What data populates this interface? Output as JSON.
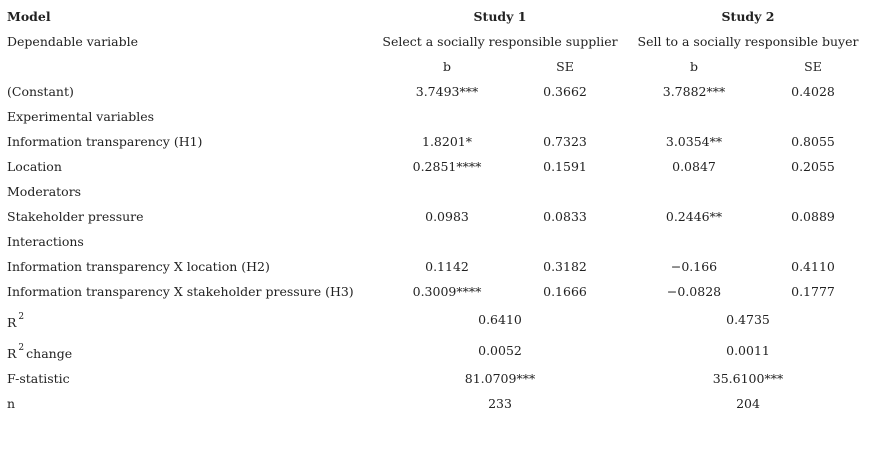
{
  "header": {
    "model": "Model",
    "study1": "Study 1",
    "study2": "Study 2",
    "dv_label": "Dependable variable",
    "dv1": "Select a socially responsible supplier",
    "dv2": "Sell to a socially responsible buyer",
    "cols": [
      "b",
      "SE",
      "b",
      "SE"
    ]
  },
  "rows": [
    {
      "label": "(Constant)",
      "cells": [
        "3.7493***",
        "0.3662",
        "3.7882***",
        "0.4028"
      ]
    },
    {
      "label": "Experimental variables"
    },
    {
      "label": "Information transparency (H1)",
      "cells": [
        "1.8201*",
        "0.7323",
        "3.0354**",
        "0.8055"
      ]
    },
    {
      "label": "Location",
      "cells": [
        "0.2851****",
        "0.1591",
        "0.0847",
        "0.2055"
      ]
    },
    {
      "label": "Moderators"
    },
    {
      "label": "Stakeholder pressure",
      "cells": [
        "0.0983",
        "0.0833",
        "0.2446**",
        "0.0889"
      ]
    },
    {
      "label": "Interactions"
    },
    {
      "label": "Information transparency X location (H2)",
      "cells": [
        "0.1142",
        "0.3182",
        "−0.166",
        "0.4110"
      ]
    },
    {
      "label": "Information transparency X stakeholder pressure (H3)",
      "cells": [
        "0.3009****",
        "0.1666",
        "−0.0828",
        "0.1777"
      ]
    }
  ],
  "summary": [
    {
      "label": "R",
      "sup": "2",
      "values": [
        "0.6410",
        "0.4735"
      ]
    },
    {
      "label": "R",
      "sup": "2",
      "suffix": "change",
      "values": [
        "0.0052",
        "0.0011"
      ]
    },
    {
      "label": "F-statistic",
      "values": [
        "81.0709***",
        "35.6100***"
      ]
    },
    {
      "label": "n",
      "values": [
        "233",
        "204"
      ]
    }
  ]
}
